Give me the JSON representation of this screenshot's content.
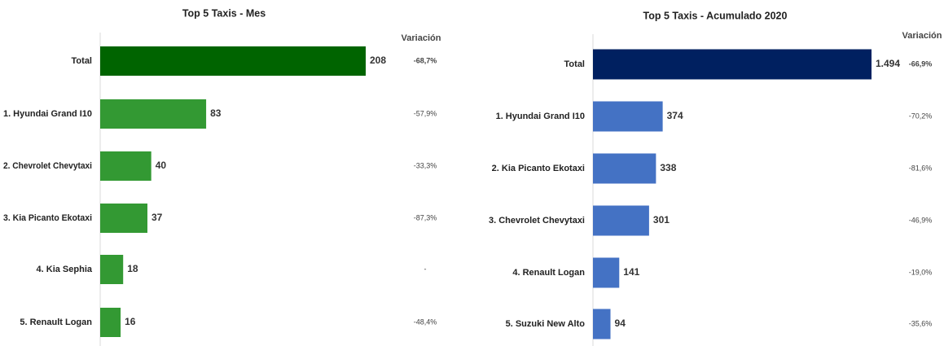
{
  "chart_data": [
    {
      "type": "barh",
      "title": "Top 5 Taxis - Mes",
      "categories": [
        "Total",
        "1. Hyundai Grand I10",
        "2. Chevrolet Chevytaxi",
        "3. Kia Picanto Ekotaxi",
        "4. Kia Sephia",
        "5. Renault Logan"
      ],
      "values": [
        208,
        83,
        40,
        37,
        18,
        16
      ],
      "colors": [
        "#006400",
        "#339933",
        "#339933",
        "#339933",
        "#339933",
        "#339933"
      ],
      "variation_title": "Variación",
      "variations": [
        "-68,7%",
        "-57,9%",
        "-33,3%",
        "-87,3%",
        "-",
        "-48,4%"
      ]
    },
    {
      "type": "barh",
      "title": "Top 5 Taxis - Acumulado 2020",
      "categories": [
        "Total",
        "1. Hyundai Grand I10",
        "2. Kia Picanto Ekotaxi",
        "3. Chevrolet Chevytaxi",
        "4. Renault Logan",
        "5. Suzuki New Alto"
      ],
      "values": [
        1494,
        374,
        338,
        301,
        141,
        94
      ],
      "value_labels": [
        "1.494",
        "374",
        "338",
        "301",
        "141",
        "94"
      ],
      "colors": [
        "#002060",
        "#4472c4",
        "#4472c4",
        "#4472c4",
        "#4472c4",
        "#4472c4"
      ],
      "variation_title": "Variación",
      "variations": [
        "-66,9%",
        "-70,2%",
        "-81,6%",
        "-46,9%",
        "-19,0%",
        "-35,6%"
      ]
    }
  ]
}
